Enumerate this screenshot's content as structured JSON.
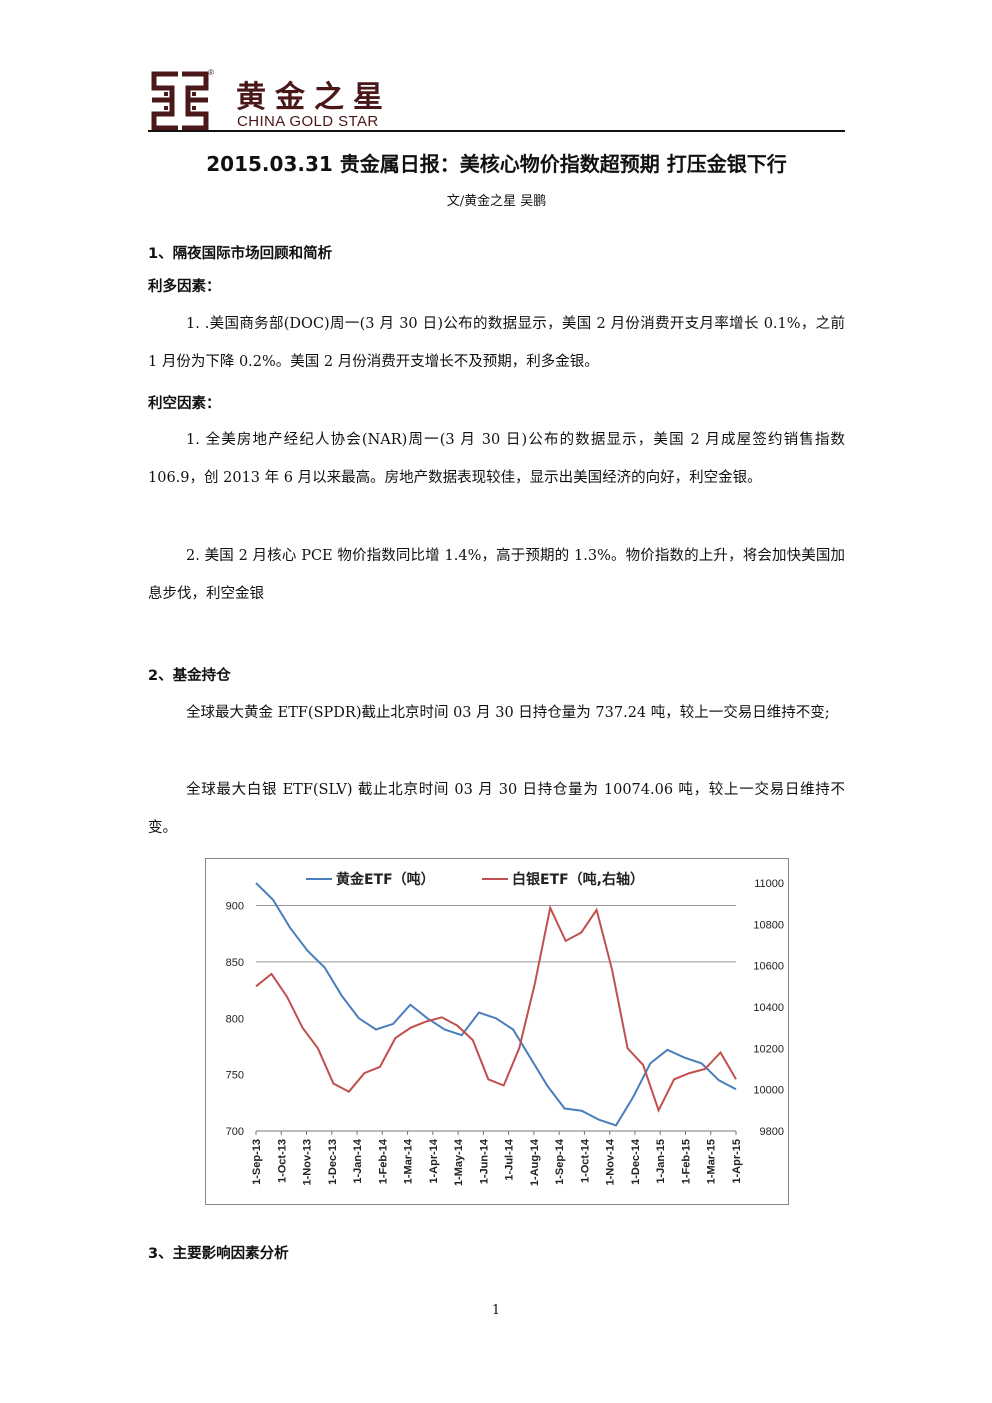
{
  "header": {
    "brand_cn": "黄金之星",
    "brand_en": "CHINA GOLD STAR",
    "reg_mark": "®",
    "colors": {
      "brand": "#4a1818"
    }
  },
  "title": "2015.03.31 贵金属日报：美核心物价指数超预期 打压金银下行",
  "byline": "文/黄金之星   吴鹏",
  "section1": {
    "heading": "1、隔夜国际市场回顾和简析",
    "bull_heading": "利多因素：",
    "bull_1": "1. .美国商务部(DOC)周一(3 月 30 日)公布的数据显示，美国 2 月份消费开支月率增长 0.1%，之前 1 月份为下降 0.2%。美国 2 月份消费开支增长不及预期，利多金银。",
    "bear_heading": "利空因素：",
    "bear_1": "1. 全美房地产经纪人协会(NAR)周一(3 月 30 日)公布的数据显示，美国 2 月成屋签约销售指数 106.9，创 2013 年 6 月以来最高。房地产数据表现较佳，显示出美国经济的向好，利空金银。",
    "bear_2": "2. 美国 2 月核心 PCE 物价指数同比增 1.4%，高于预期的 1.3%。物价指数的上升，将会加快美国加息步伐，利空金银"
  },
  "section2": {
    "heading": "2、基金持仓",
    "gold": "全球最大黄金 ETF(SPDR)截止北京时间 03 月 30 日持仓量为 737.24 吨，较上一交易日维持不变;",
    "silver": "全球最大白银 ETF(SLV) 截止北京时间 03 月 30 日持仓量为 10074.06 吨，较上一交易日维持不变。"
  },
  "section3": {
    "heading": "3、主要影响因素分析"
  },
  "page_number": "1",
  "chart_data": {
    "type": "line",
    "title": "",
    "x_labels": [
      "1-Sep-13",
      "1-Oct-13",
      "1-Nov-13",
      "1-Dec-13",
      "1-Jan-14",
      "1-Feb-14",
      "1-Mar-14",
      "1-Apr-14",
      "1-May-14",
      "1-Jun-14",
      "1-Jul-14",
      "1-Aug-14",
      "1-Sep-14",
      "1-Oct-14",
      "1-Nov-14",
      "1-Dec-14",
      "1-Jan-15",
      "1-Feb-15",
      "1-Mar-15",
      "1-Apr-15"
    ],
    "y_left": {
      "min": 700,
      "max": 920,
      "ticks": [
        "700",
        "750",
        "800",
        "850",
        "900"
      ]
    },
    "y_right": {
      "min": 9800,
      "max": 11000,
      "ticks": [
        "9800",
        "10000",
        "10200",
        "10400",
        "10600",
        "10800",
        "11000"
      ]
    },
    "gridlines": [
      850,
      900
    ],
    "legend_placement": "top",
    "series": [
      {
        "name": "黄金ETF（吨）",
        "axis": "left",
        "color": "#4a7ebb",
        "values": [
          920,
          905,
          880,
          860,
          845,
          820,
          800,
          790,
          795,
          812,
          800,
          790,
          785,
          805,
          800,
          790,
          765,
          740,
          720,
          718,
          710,
          705,
          730,
          760,
          772,
          765,
          760,
          745,
          737
        ]
      },
      {
        "name": "白银ETF（吨,右轴）",
        "axis": "right",
        "color": "#c0504d",
        "values": [
          10500,
          10560,
          10450,
          10300,
          10200,
          10030,
          9990,
          10080,
          10110,
          10250,
          10300,
          10330,
          10350,
          10310,
          10240,
          10050,
          10020,
          10200,
          10510,
          10880,
          10720,
          10760,
          10870,
          10580,
          10200,
          10120,
          9900,
          10050,
          10080,
          10100,
          10180,
          10050
        ]
      }
    ]
  }
}
